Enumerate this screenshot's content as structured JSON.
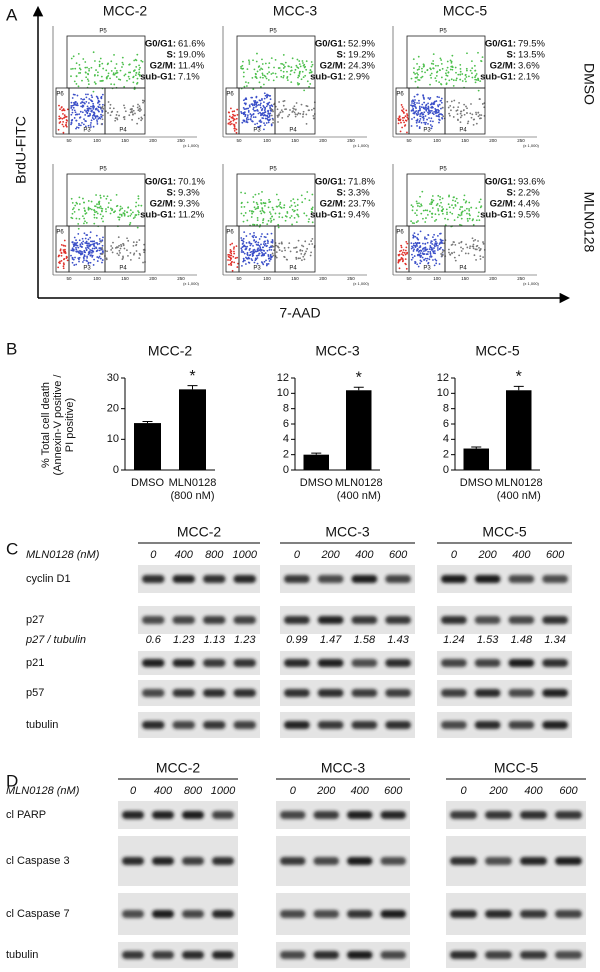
{
  "panel_a": {
    "label": "A",
    "y_axis": "BrdU-FITC",
    "x_axis": "7-AAD",
    "columns": [
      "MCC-2",
      "MCC-3",
      "MCC-5"
    ],
    "rows": [
      "DMSO",
      "MLN0128"
    ],
    "gates": [
      "P5",
      "P6",
      "P3",
      "P4"
    ],
    "axis_unit": "(x 1,000)",
    "x_ticks": [
      50,
      100,
      150,
      200,
      250
    ],
    "stat_labels": [
      "G0/G1:",
      "S:",
      "G2/M:",
      "sub-G1:"
    ],
    "plots": [
      [
        [
          "61.6%",
          "19.0%",
          "11.4%",
          "7.1%"
        ],
        [
          "52.9%",
          "19.2%",
          "24.3%",
          "2.9%"
        ],
        [
          "79.5%",
          "13.5%",
          "3.6%",
          "2.1%"
        ]
      ],
      [
        [
          "70.1%",
          "9.3%",
          "9.3%",
          "11.2%"
        ],
        [
          "71.8%",
          "3.3%",
          "23.7%",
          "9.4%"
        ],
        [
          "93.6%",
          "2.2%",
          "4.4%",
          "9.5%"
        ]
      ]
    ]
  },
  "panel_b": {
    "label": "B",
    "ylabel": [
      "% Total cell death",
      "(Annexin-V positive /",
      "PI positive)"
    ]
  },
  "chart_data": [
    {
      "type": "bar",
      "title": "MCC-2",
      "categories": [
        "DMSO",
        "MLN0128"
      ],
      "dose": "(800 nM)",
      "values": [
        15.3,
        26.3
      ],
      "errors": [
        0.5,
        1.2
      ],
      "annotation": "*",
      "color": "#000000",
      "ylim": [
        0,
        30
      ],
      "yticks": [
        0,
        10,
        20,
        30
      ]
    },
    {
      "type": "bar",
      "title": "MCC-3",
      "categories": [
        "DMSO",
        "MLN0128"
      ],
      "dose": "(400 nM)",
      "values": [
        2.0,
        10.4
      ],
      "errors": [
        0.2,
        0.4
      ],
      "annotation": "*",
      "color": "#000000",
      "ylim": [
        0,
        12
      ],
      "yticks": [
        0,
        2,
        4,
        6,
        8,
        10,
        12
      ]
    },
    {
      "type": "bar",
      "title": "MCC-5",
      "categories": [
        "DMSO",
        "MLN0128"
      ],
      "dose": "(400 nM)",
      "values": [
        2.8,
        10.4
      ],
      "errors": [
        0.2,
        0.5
      ],
      "annotation": "*",
      "color": "#000000",
      "ylim": [
        0,
        12
      ],
      "yticks": [
        0,
        2,
        4,
        6,
        8,
        10,
        12
      ]
    }
  ],
  "panel_c": {
    "label": "C",
    "treatment": "MLN0128 (nM)",
    "groups": [
      {
        "name": "MCC-2",
        "doses": [
          0,
          400,
          800,
          1000
        ],
        "ratios": [
          0.6,
          1.23,
          1.13,
          1.23
        ]
      },
      {
        "name": "MCC-3",
        "doses": [
          0,
          200,
          400,
          600
        ],
        "ratios": [
          0.99,
          1.47,
          1.58,
          1.43
        ]
      },
      {
        "name": "MCC-5",
        "doses": [
          0,
          200,
          400,
          600
        ],
        "ratios": [
          1.24,
          1.53,
          1.48,
          1.34
        ]
      }
    ],
    "rows": [
      "cyclin D1",
      "p27",
      "p21",
      "p57",
      "tubulin"
    ],
    "ratio_label": "p27 / tubulin"
  },
  "panel_d": {
    "label": "D",
    "treatment": "MLN0128 (nM)",
    "groups": [
      {
        "name": "MCC-2",
        "doses": [
          0,
          400,
          800,
          1000
        ]
      },
      {
        "name": "MCC-3",
        "doses": [
          0,
          200,
          400,
          600
        ]
      },
      {
        "name": "MCC-5",
        "doses": [
          0,
          200,
          400,
          600
        ]
      }
    ],
    "rows": [
      "cl PARP",
      "cl Caspase 3",
      "cl Caspase 7",
      "tubulin"
    ]
  }
}
